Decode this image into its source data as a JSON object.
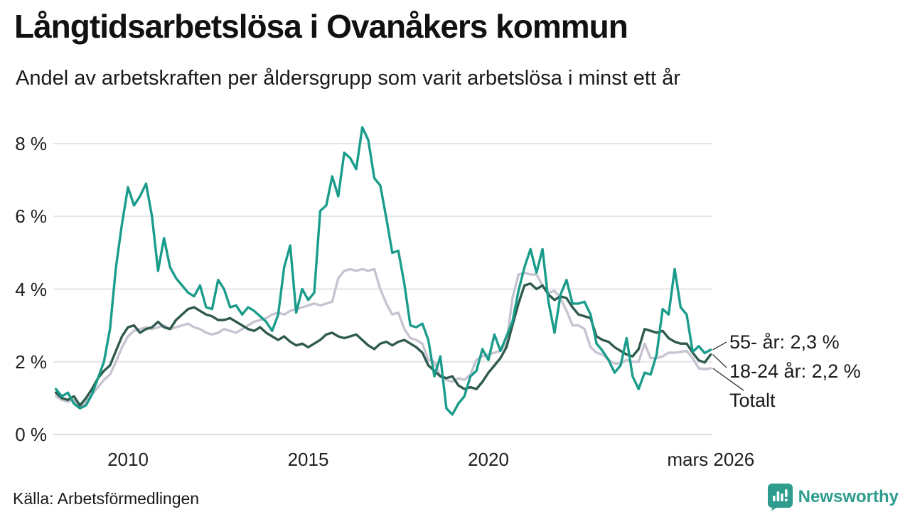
{
  "title": "Långtidsarbetslösa i Ovanåkers kommun",
  "subtitle": "Andel av arbetskraften per åldersgrupp som varit arbetslösa i minst ett år",
  "source": "Källa: Arbetsförmedlingen",
  "branding": {
    "name": "Newsworthy",
    "color": "#2E9C8F"
  },
  "chart_data": {
    "type": "line",
    "title": "Långtidsarbetslösa i Ovanåkers kommun",
    "xlabel": "",
    "ylabel": "Andel av arbetskraften (%)",
    "x_start": 2008.0,
    "x_step_years": 0.166667,
    "x_end": 2026.25,
    "ylim": [
      0,
      8.8
    ],
    "grid": true,
    "legend_position": "right-annotations",
    "yticks": [
      {
        "value": 0,
        "label": "0 %"
      },
      {
        "value": 2,
        "label": "2 %"
      },
      {
        "value": 4,
        "label": "4 %"
      },
      {
        "value": 6,
        "label": "6 %"
      },
      {
        "value": 8,
        "label": "8 %"
      }
    ],
    "xticks": [
      {
        "value": 2010,
        "label": "2010"
      },
      {
        "value": 2015,
        "label": "2015"
      },
      {
        "value": 2020,
        "label": "2020"
      },
      {
        "value": 2026.17,
        "label": "mars 2026"
      }
    ],
    "series": [
      {
        "name": "55- år",
        "end_label": "55- år: 2,3 %",
        "latest_value": "2,3 %",
        "color": "#1A9C8B",
        "values": [
          1.25,
          1.05,
          1.15,
          0.85,
          0.72,
          0.8,
          1.1,
          1.55,
          2.0,
          2.9,
          4.6,
          5.8,
          6.8,
          6.3,
          6.55,
          6.9,
          6.0,
          4.5,
          5.4,
          4.6,
          4.3,
          4.1,
          3.9,
          3.8,
          4.1,
          3.5,
          3.45,
          4.25,
          4.0,
          3.5,
          3.55,
          3.3,
          3.5,
          3.4,
          3.25,
          3.1,
          2.85,
          3.3,
          4.6,
          5.2,
          3.35,
          4.0,
          3.7,
          3.9,
          6.15,
          6.3,
          7.1,
          6.55,
          7.75,
          7.6,
          7.3,
          8.45,
          8.1,
          7.05,
          6.85,
          5.95,
          5.0,
          5.05,
          4.15,
          3.0,
          2.95,
          3.05,
          2.6,
          1.6,
          2.15,
          0.72,
          0.55,
          0.85,
          1.05,
          1.6,
          1.75,
          2.35,
          2.05,
          2.75,
          2.3,
          2.7,
          3.1,
          3.95,
          4.6,
          5.1,
          4.45,
          5.1,
          3.65,
          2.8,
          3.85,
          4.25,
          3.6,
          3.6,
          3.65,
          3.3,
          2.5,
          2.3,
          2.05,
          1.7,
          1.9,
          2.65,
          1.6,
          1.25,
          1.7,
          1.65,
          2.2,
          3.45,
          3.3,
          4.55,
          3.5,
          3.3,
          2.27,
          2.43,
          2.24,
          2.33
        ]
      },
      {
        "name": "18-24 år",
        "end_label": "18-24 år: 2,2 %",
        "latest_value": "2,2 %",
        "color": "#2F5A4E",
        "values": [
          1.15,
          1.0,
          0.95,
          1.05,
          0.8,
          1.0,
          1.25,
          1.55,
          1.75,
          1.9,
          2.3,
          2.7,
          2.95,
          3.0,
          2.8,
          2.9,
          2.95,
          3.1,
          2.95,
          2.9,
          3.15,
          3.3,
          3.45,
          3.5,
          3.4,
          3.3,
          3.25,
          3.15,
          3.15,
          3.2,
          3.1,
          3.0,
          2.9,
          2.85,
          2.95,
          2.8,
          2.7,
          2.6,
          2.7,
          2.55,
          2.45,
          2.5,
          2.4,
          2.5,
          2.6,
          2.75,
          2.8,
          2.7,
          2.65,
          2.7,
          2.75,
          2.6,
          2.45,
          2.35,
          2.5,
          2.55,
          2.45,
          2.55,
          2.6,
          2.5,
          2.4,
          2.25,
          1.9,
          1.75,
          1.6,
          1.55,
          1.6,
          1.35,
          1.25,
          1.3,
          1.25,
          1.45,
          1.7,
          1.9,
          2.1,
          2.4,
          3.0,
          3.6,
          4.1,
          4.15,
          4.0,
          4.1,
          3.85,
          3.7,
          3.8,
          3.75,
          3.5,
          3.3,
          3.25,
          3.2,
          2.7,
          2.6,
          2.55,
          2.4,
          2.3,
          2.2,
          2.15,
          2.35,
          2.9,
          2.85,
          2.8,
          2.85,
          2.65,
          2.55,
          2.5,
          2.5,
          2.25,
          2.04,
          1.98,
          2.2
        ]
      },
      {
        "name": "Totalt",
        "end_label": "Totalt",
        "latest_value": "",
        "color": "#C7C4D1",
        "values": [
          1.05,
          0.95,
          0.9,
          0.95,
          0.75,
          0.9,
          1.1,
          1.3,
          1.5,
          1.65,
          2.0,
          2.4,
          2.7,
          2.85,
          2.9,
          2.95,
          2.9,
          2.95,
          3.0,
          2.9,
          2.95,
          3.0,
          3.05,
          2.95,
          2.9,
          2.8,
          2.75,
          2.8,
          2.9,
          2.85,
          2.8,
          2.9,
          3.0,
          3.1,
          3.15,
          3.2,
          3.3,
          3.35,
          3.3,
          3.4,
          3.45,
          3.5,
          3.55,
          3.6,
          3.55,
          3.6,
          3.65,
          4.3,
          4.5,
          4.55,
          4.5,
          4.55,
          4.5,
          4.55,
          4.0,
          3.6,
          3.3,
          3.35,
          2.9,
          2.65,
          2.6,
          2.5,
          2.05,
          2.0,
          1.6,
          1.5,
          1.45,
          1.55,
          1.5,
          1.65,
          2.05,
          2.15,
          2.2,
          2.25,
          2.3,
          2.5,
          3.75,
          4.4,
          4.45,
          4.4,
          4.4,
          4.1,
          3.9,
          3.95,
          3.75,
          3.4,
          3.0,
          3.0,
          2.9,
          2.4,
          2.25,
          2.2,
          2.05,
          1.95,
          1.95,
          2.05,
          2.0,
          2.0,
          2.5,
          2.1,
          2.1,
          2.15,
          2.25,
          2.25,
          2.27,
          2.3,
          2.1,
          1.82,
          1.8,
          1.82
        ]
      }
    ],
    "colors": {
      "grid": "#E4E4E9",
      "baseline": "#DBDBE1",
      "leader": "#404040"
    }
  }
}
